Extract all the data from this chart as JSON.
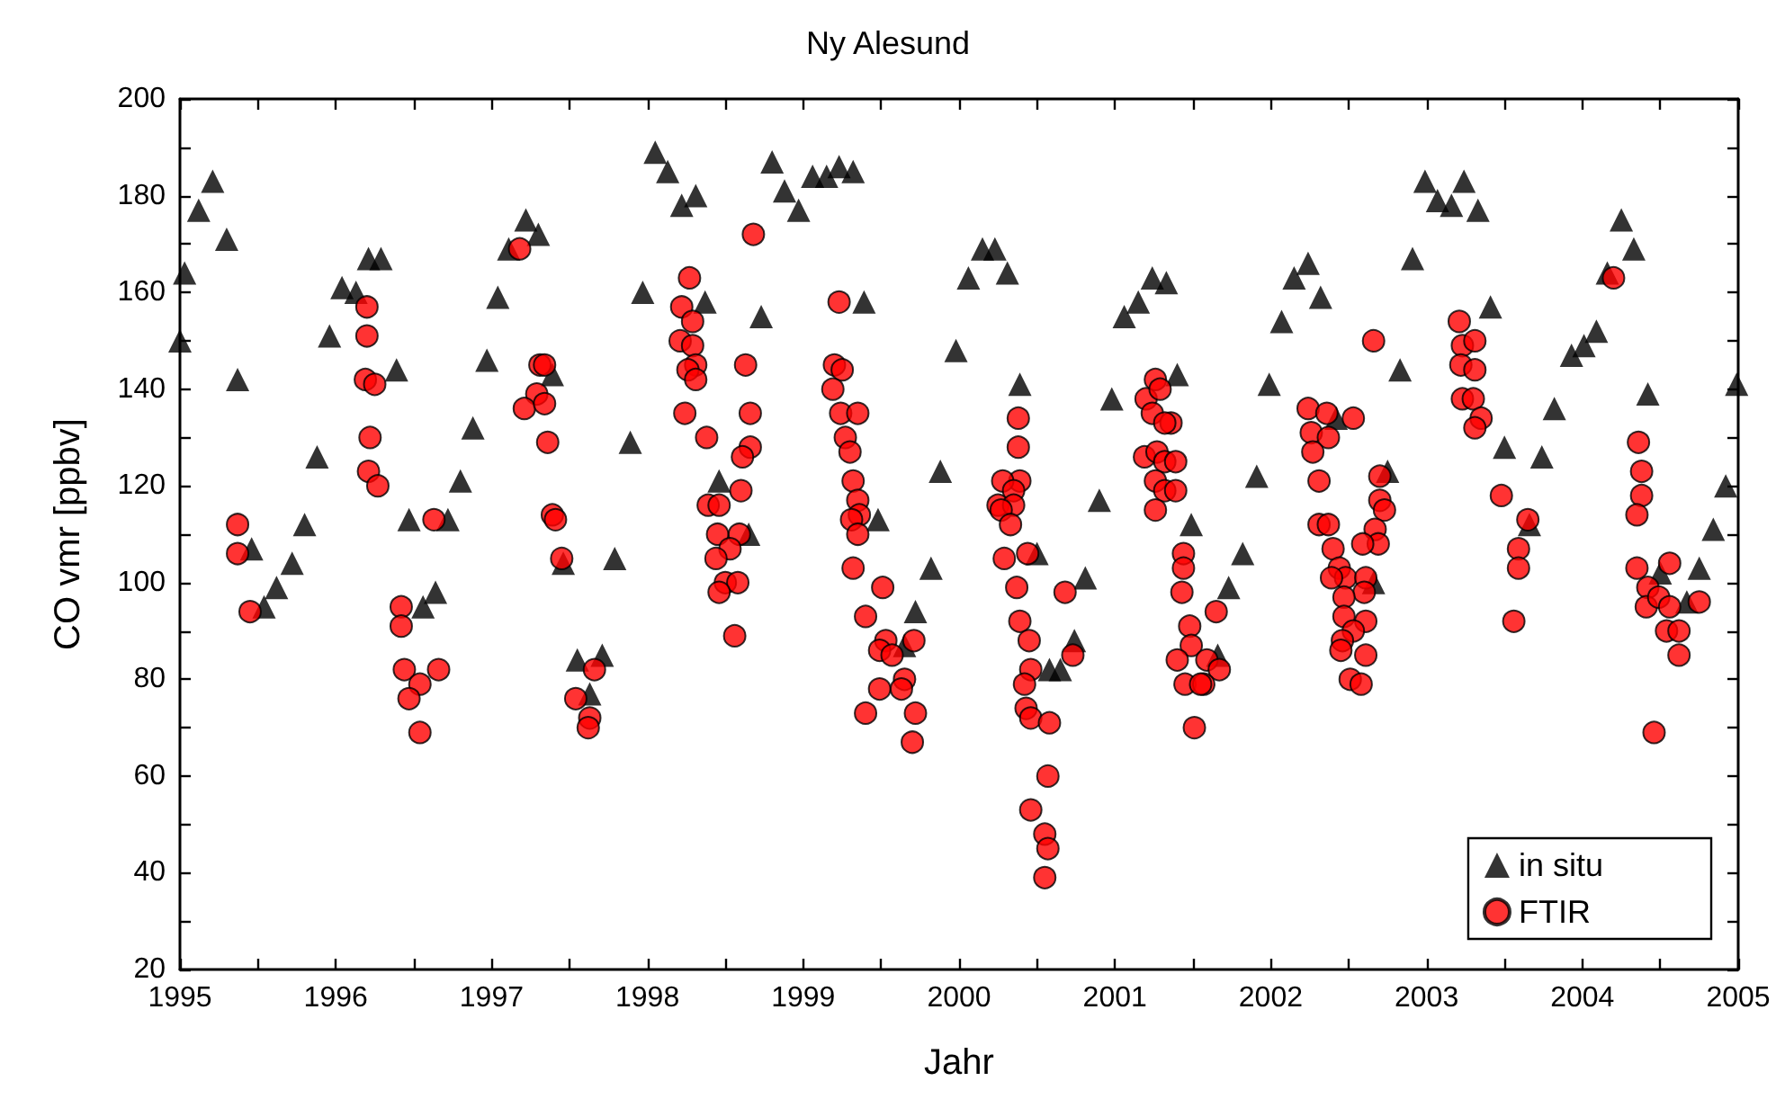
{
  "chart_data": {
    "type": "scatter",
    "title": "Ny Alesund",
    "xlabel": "Jahr",
    "ylabel": "CO vmr [ppbv]",
    "xlim": [
      1995,
      2005
    ],
    "xticks": [
      1995,
      {
        "value": 1995.5,
        "label": null
      },
      1996,
      {
        "value": 1996.5,
        "label": null
      },
      1997,
      {
        "value": 1997.5,
        "label": null
      },
      1998,
      {
        "value": 1998.5,
        "label": null
      },
      1999,
      {
        "value": 1999.5,
        "label": null
      },
      2000,
      {
        "value": 2000.5,
        "label": null
      },
      2001,
      {
        "value": 2001.5,
        "label": null
      },
      2002,
      {
        "value": 2002.5,
        "label": null
      },
      2003,
      {
        "value": 2003.5,
        "label": null
      },
      2004,
      {
        "value": 2004.5,
        "label": null
      },
      2005
    ],
    "ylim": [
      20,
      200
    ],
    "yticks": [
      20,
      {
        "value": 30,
        "label": null
      },
      40,
      {
        "value": 50,
        "label": null
      },
      60,
      {
        "value": 70,
        "label": null
      },
      80,
      {
        "value": 90,
        "label": null
      },
      100,
      {
        "value": 110,
        "label": null
      },
      120,
      {
        "value": 130,
        "label": null
      },
      140,
      {
        "value": 150,
        "label": null
      },
      160,
      {
        "value": 170,
        "label": null
      },
      180,
      {
        "value": 190,
        "label": null
      },
      200
    ],
    "grid": false,
    "legend": "bottom right",
    "series": [
      {
        "name": "in situ",
        "color": "#000000",
        "marker": "triangle",
        "x": [
          1995.0,
          1995.03,
          1995.12,
          1995.21,
          1995.3,
          1995.37,
          1995.46,
          1995.54,
          1995.62,
          1995.72,
          1995.8,
          1995.88,
          1995.96,
          1996.04,
          1996.13,
          1996.21,
          1996.29,
          1996.39,
          1996.47,
          1996.56,
          1996.64,
          1996.72,
          1996.8,
          1996.88,
          1996.97,
          1997.04,
          1997.11,
          1997.22,
          1997.3,
          1997.39,
          1997.46,
          1997.55,
          1997.63,
          1997.71,
          1997.79,
          1997.89,
          1997.97,
          1998.05,
          1998.13,
          1998.22,
          1998.31,
          1998.37,
          1998.46,
          1998.65,
          1998.73,
          1998.8,
          1998.88,
          1998.97,
          1999.06,
          1999.15,
          1999.23,
          1999.32,
          1999.39,
          1999.48,
          1999.65,
          1999.72,
          1999.82,
          1999.88,
          1999.98,
          2000.06,
          2000.15,
          2000.23,
          2000.31,
          2000.39,
          2000.5,
          2000.58,
          2000.65,
          2000.74,
          2000.81,
          2000.9,
          2000.98,
          2001.06,
          2001.15,
          2001.24,
          2001.33,
          2001.4,
          2001.49,
          2001.66,
          2001.73,
          2001.82,
          2001.91,
          2001.99,
          2002.07,
          2002.15,
          2002.24,
          2002.32,
          2002.42,
          2002.66,
          2002.75,
          2002.83,
          2002.91,
          2002.99,
          2003.07,
          2003.16,
          2003.24,
          2003.33,
          2003.41,
          2003.5,
          2003.58,
          2003.66,
          2003.74,
          2003.82,
          2003.93,
          2004.01,
          2004.09,
          2004.16,
          2004.25,
          2004.33,
          2004.42,
          2004.5,
          2004.67,
          2004.75,
          2004.84,
          2004.92,
          2004.99
        ],
        "values": [
          150,
          164,
          177,
          183,
          171,
          142,
          107,
          95,
          99,
          104,
          112,
          126,
          151,
          161,
          160,
          167,
          167,
          144,
          113,
          95,
          98,
          113,
          121,
          132,
          146,
          159,
          169,
          175,
          172,
          143,
          104,
          84,
          77,
          85,
          105,
          129,
          160,
          189,
          185,
          178,
          180,
          158,
          121,
          110,
          155,
          187,
          181,
          177,
          184,
          184,
          186,
          185,
          158,
          113,
          87,
          94,
          103,
          123,
          148,
          163,
          169,
          169,
          164,
          141,
          106,
          82,
          82,
          88,
          101,
          117,
          138,
          155,
          158,
          163,
          162,
          143,
          112,
          85,
          99,
          106,
          122,
          141,
          154,
          163,
          166,
          159,
          134,
          100,
          123,
          144,
          167,
          183,
          179,
          178,
          183,
          177,
          157,
          128,
          null,
          112,
          126,
          136,
          147,
          149,
          152,
          164,
          175,
          169,
          139,
          102,
          96,
          103,
          111,
          120,
          141
        ]
      },
      {
        "name": "FTIR",
        "color": "#ff0000",
        "marker": "circle",
        "x": [
          1995.37,
          1995.37,
          1995.45,
          1996.2,
          1996.2,
          1996.19,
          1996.25,
          1996.22,
          1996.21,
          1996.27,
          1996.42,
          1996.42,
          1996.44,
          1996.66,
          1996.54,
          1996.47,
          1996.54,
          1996.63,
          1997.18,
          1997.31,
          1997.34,
          1997.29,
          1997.21,
          1997.34,
          1997.36,
          1997.39,
          1997.41,
          1997.45,
          1997.66,
          1997.54,
          1997.63,
          1997.62,
          1998.68,
          1998.27,
          1998.22,
          1998.29,
          1998.21,
          1998.29,
          1998.31,
          1998.26,
          1998.31,
          1998.24,
          1998.38,
          1998.63,
          1998.66,
          1998.66,
          1998.61,
          1998.6,
          1998.39,
          1998.46,
          1998.45,
          1998.59,
          1998.53,
          1998.44,
          1998.5,
          1998.58,
          1998.46,
          1998.56,
          1999.23,
          1999.2,
          1999.25,
          1999.19,
          1999.24,
          1999.35,
          1999.27,
          1999.3,
          1999.32,
          1999.35,
          1999.36,
          1999.31,
          1999.35,
          1999.32,
          1999.51,
          1999.4,
          1999.53,
          1999.49,
          1999.57,
          1999.71,
          1999.65,
          1999.49,
          1999.63,
          1999.4,
          1999.72,
          1999.7,
          2000.38,
          2000.38,
          2000.39,
          2000.28,
          2000.35,
          2000.25,
          2000.35,
          2000.27,
          2000.33,
          2000.44,
          2000.29,
          2000.37,
          2000.39,
          2000.45,
          2000.46,
          2000.42,
          2000.43,
          2000.46,
          2000.58,
          2000.68,
          2000.73,
          2000.57,
          2000.46,
          2000.55,
          2000.57,
          2000.55,
          2001.26,
          2001.2,
          2001.29,
          2001.24,
          2001.36,
          2001.32,
          2001.19,
          2001.27,
          2001.32,
          2001.39,
          2001.26,
          2001.32,
          2001.39,
          2001.26,
          2001.44,
          2001.44,
          2001.43,
          2001.48,
          2001.49,
          2001.4,
          2001.65,
          2001.59,
          2001.67,
          2001.45,
          2001.57,
          2001.55,
          2001.51,
          2002.24,
          2002.36,
          2002.53,
          2002.26,
          2002.37,
          2002.27,
          2002.31,
          2002.7,
          2002.7,
          2002.73,
          2002.67,
          2002.69,
          2002.59,
          2002.31,
          2002.37,
          2002.4,
          2002.44,
          2002.48,
          2002.39,
          2002.61,
          2002.6,
          2002.47,
          2002.47,
          2002.61,
          2002.53,
          2002.46,
          2002.45,
          2002.61,
          2002.51,
          2002.58,
          2002.66,
          2003.21,
          2003.23,
          2003.31,
          2003.22,
          2003.31,
          2003.23,
          2003.3,
          2003.35,
          2003.31,
          2003.48,
          2003.65,
          2003.59,
          2003.59,
          2003.56,
          2004.2,
          2004.36,
          2004.38,
          2004.38,
          2004.35,
          2004.35,
          2004.56,
          2004.42,
          2004.41,
          2004.49,
          2004.56,
          2004.75,
          2004.54,
          2004.62,
          2004.62,
          2004.46
        ],
        "values": [
          112,
          106,
          94,
          157,
          151,
          142,
          141,
          130,
          123,
          120,
          95,
          91,
          82,
          82,
          79,
          76,
          69,
          113,
          169,
          145,
          145,
          139,
          136,
          137,
          129,
          114,
          113,
          105,
          82,
          76,
          72,
          70,
          172,
          163,
          157,
          154,
          150,
          149,
          145,
          144,
          142,
          135,
          130,
          145,
          135,
          128,
          126,
          119,
          116,
          116,
          110,
          110,
          107,
          105,
          100,
          100,
          98,
          89,
          158,
          145,
          144,
          140,
          135,
          135,
          130,
          127,
          121,
          117,
          114,
          113,
          110,
          103,
          99,
          93,
          88,
          86,
          85,
          88,
          80,
          78,
          78,
          73,
          73,
          67,
          134,
          128,
          121,
          121,
          119,
          116,
          116,
          115,
          112,
          106,
          105,
          99,
          92,
          88,
          82,
          79,
          74,
          72,
          71,
          98,
          85,
          60,
          53,
          48,
          45,
          39,
          142,
          138,
          140,
          135,
          133,
          133,
          126,
          127,
          125,
          125,
          121,
          119,
          119,
          115,
          106,
          103,
          98,
          91,
          87,
          84,
          94,
          84,
          82,
          79,
          79,
          79,
          70,
          136,
          135,
          134,
          131,
          130,
          127,
          121,
          122,
          117,
          115,
          111,
          108,
          108,
          112,
          112,
          107,
          103,
          101,
          101,
          101,
          98,
          97,
          93,
          92,
          90,
          88,
          86,
          85,
          80,
          79,
          150,
          154,
          149,
          150,
          145,
          144,
          138,
          138,
          134,
          132,
          118,
          113,
          107,
          103,
          92,
          163,
          129,
          123,
          118,
          114,
          103,
          104,
          99,
          95,
          97,
          95,
          96,
          90,
          90,
          85,
          69
        ]
      }
    ]
  }
}
